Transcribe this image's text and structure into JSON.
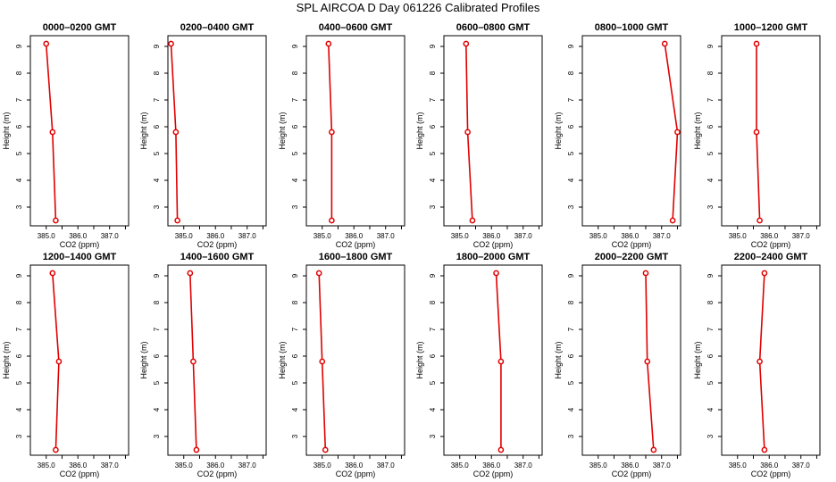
{
  "figure": {
    "title": "SPL AIRCOA D  Day 061226  Calibrated Profiles",
    "series_color": "#e00000"
  },
  "chart_data": [
    {
      "type": "line",
      "title": "0000–0200 GMT",
      "xlabel": "CO2 (ppm)",
      "ylabel": "Height (m)",
      "xlim": [
        384.5,
        387.6
      ],
      "ylim": [
        2.3,
        9.4
      ],
      "xticks": [
        "385.0",
        "386.0",
        "387.0"
      ],
      "yticks": [
        "3",
        "4",
        "5",
        "6",
        "7",
        "8",
        "9"
      ],
      "heights": [
        9.1,
        5.8,
        2.5
      ],
      "values": [
        385.0,
        385.2,
        385.3
      ]
    },
    {
      "type": "line",
      "title": "0200–0400 GMT",
      "xlabel": "CO2 (ppm)",
      "ylabel": "Height (m)",
      "xlim": [
        384.5,
        387.6
      ],
      "ylim": [
        2.3,
        9.4
      ],
      "xticks": [
        "385.0",
        "386.0",
        "387.0"
      ],
      "yticks": [
        "3",
        "4",
        "5",
        "6",
        "7",
        "8",
        "9"
      ],
      "heights": [
        9.1,
        5.8,
        2.5
      ],
      "values": [
        384.6,
        384.75,
        384.8
      ]
    },
    {
      "type": "line",
      "title": "0400–0600 GMT",
      "xlabel": "CO2 (ppm)",
      "ylabel": "Height (m)",
      "xlim": [
        384.5,
        387.6
      ],
      "ylim": [
        2.3,
        9.4
      ],
      "xticks": [
        "385.0",
        "386.0",
        "387.0"
      ],
      "yticks": [
        "3",
        "4",
        "5",
        "6",
        "7",
        "8",
        "9"
      ],
      "heights": [
        9.1,
        5.8,
        2.5
      ],
      "values": [
        385.2,
        385.3,
        385.3
      ]
    },
    {
      "type": "line",
      "title": "0600–0800 GMT",
      "xlabel": "CO2 (ppm)",
      "ylabel": "Height (m)",
      "xlim": [
        384.5,
        387.6
      ],
      "ylim": [
        2.3,
        9.4
      ],
      "xticks": [
        "385.0",
        "386.0",
        "387.0"
      ],
      "yticks": [
        "3",
        "4",
        "5",
        "6",
        "7",
        "8",
        "9"
      ],
      "heights": [
        9.1,
        5.8,
        2.5
      ],
      "values": [
        385.2,
        385.25,
        385.4
      ]
    },
    {
      "type": "line",
      "title": "0800–1000 GMT",
      "xlabel": "CO2 (ppm)",
      "ylabel": "Height (m)",
      "xlim": [
        384.5,
        387.6
      ],
      "ylim": [
        2.3,
        9.4
      ],
      "xticks": [
        "385.0",
        "386.0",
        "387.0"
      ],
      "yticks": [
        "3",
        "4",
        "5",
        "6",
        "7",
        "8",
        "9"
      ],
      "heights": [
        9.1,
        5.8,
        2.5
      ],
      "values": [
        387.1,
        387.5,
        387.35
      ]
    },
    {
      "type": "line",
      "title": "1000–1200 GMT",
      "xlabel": "CO2 (ppm)",
      "ylabel": "Height (m)",
      "xlim": [
        384.5,
        387.6
      ],
      "ylim": [
        2.3,
        9.4
      ],
      "xticks": [
        "385.0",
        "386.0",
        "387.0"
      ],
      "yticks": [
        "3",
        "4",
        "5",
        "6",
        "7",
        "8",
        "9"
      ],
      "heights": [
        9.1,
        5.8,
        2.5
      ],
      "values": [
        385.6,
        385.6,
        385.7
      ]
    },
    {
      "type": "line",
      "title": "1200–1400 GMT",
      "xlabel": "CO2 (ppm)",
      "ylabel": "Height (m)",
      "xlim": [
        384.5,
        387.6
      ],
      "ylim": [
        2.3,
        9.4
      ],
      "xticks": [
        "385.0",
        "386.0",
        "387.0"
      ],
      "yticks": [
        "3",
        "4",
        "5",
        "6",
        "7",
        "8",
        "9"
      ],
      "heights": [
        9.1,
        5.8,
        2.5
      ],
      "values": [
        385.2,
        385.4,
        385.3
      ]
    },
    {
      "type": "line",
      "title": "1400–1600 GMT",
      "xlabel": "CO2 (ppm)",
      "ylabel": "Height (m)",
      "xlim": [
        384.5,
        387.6
      ],
      "ylim": [
        2.3,
        9.4
      ],
      "xticks": [
        "385.0",
        "386.0",
        "387.0"
      ],
      "yticks": [
        "3",
        "4",
        "5",
        "6",
        "7",
        "8",
        "9"
      ],
      "heights": [
        9.1,
        5.8,
        2.5
      ],
      "values": [
        385.2,
        385.3,
        385.4
      ]
    },
    {
      "type": "line",
      "title": "1600–1800 GMT",
      "xlabel": "CO2 (ppm)",
      "ylabel": "Height (m)",
      "xlim": [
        384.5,
        387.6
      ],
      "ylim": [
        2.3,
        9.4
      ],
      "xticks": [
        "385.0",
        "386.0",
        "387.0"
      ],
      "yticks": [
        "3",
        "4",
        "5",
        "6",
        "7",
        "8",
        "9"
      ],
      "heights": [
        9.1,
        5.8,
        2.5
      ],
      "values": [
        384.9,
        385.0,
        385.1
      ]
    },
    {
      "type": "line",
      "title": "1800–2000 GMT",
      "xlabel": "CO2 (ppm)",
      "ylabel": "Height (m)",
      "xlim": [
        384.5,
        387.6
      ],
      "ylim": [
        2.3,
        9.4
      ],
      "xticks": [
        "385.0",
        "386.0",
        "387.0"
      ],
      "yticks": [
        "3",
        "4",
        "5",
        "6",
        "7",
        "8",
        "9"
      ],
      "heights": [
        9.1,
        5.8,
        2.5
      ],
      "values": [
        386.15,
        386.3,
        386.3
      ]
    },
    {
      "type": "line",
      "title": "2000–2200 GMT",
      "xlabel": "CO2 (ppm)",
      "ylabel": "Height (m)",
      "xlim": [
        384.5,
        387.6
      ],
      "ylim": [
        2.3,
        9.4
      ],
      "xticks": [
        "385.0",
        "386.0",
        "387.0"
      ],
      "yticks": [
        "3",
        "4",
        "5",
        "6",
        "7",
        "8",
        "9"
      ],
      "heights": [
        9.1,
        5.8,
        2.5
      ],
      "values": [
        386.5,
        386.55,
        386.75
      ]
    },
    {
      "type": "line",
      "title": "2200–2400 GMT",
      "xlabel": "CO2 (ppm)",
      "ylabel": "Height (m)",
      "xlim": [
        384.5,
        387.6
      ],
      "ylim": [
        2.3,
        9.4
      ],
      "xticks": [
        "385.0",
        "386.0",
        "387.0"
      ],
      "yticks": [
        "3",
        "4",
        "5",
        "6",
        "7",
        "8",
        "9"
      ],
      "heights": [
        9.1,
        5.8,
        2.5
      ],
      "values": [
        385.85,
        385.7,
        385.85
      ]
    }
  ]
}
